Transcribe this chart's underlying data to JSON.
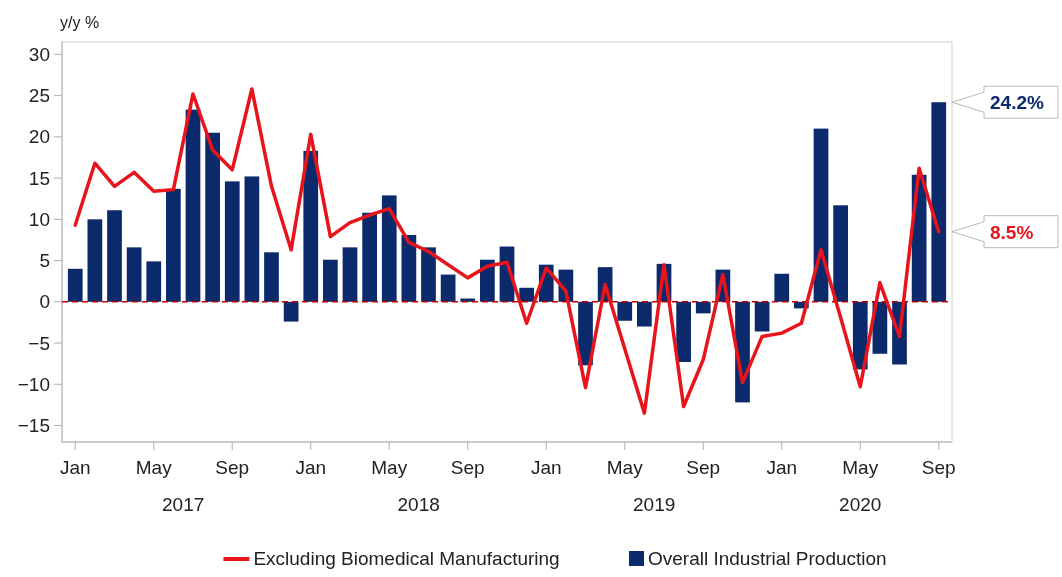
{
  "chart_data": {
    "type": "bar",
    "ylabel": "y/y %",
    "categories": [
      "Jan",
      null,
      null,
      null,
      "May",
      null,
      null,
      null,
      "Sep",
      null,
      null,
      null,
      "Jan",
      null,
      null,
      null,
      "May",
      null,
      null,
      null,
      "Sep",
      null,
      null,
      null,
      "Jan",
      null,
      null,
      null,
      "May",
      null,
      null,
      null,
      "Sep",
      null,
      null,
      null,
      "Jan",
      null,
      null,
      null,
      "May",
      null,
      null,
      null,
      "Sep"
    ],
    "series": [
      {
        "name": "Excluding Biomedical Manufacturing",
        "type": "line",
        "color": "#e8141b",
        "values": [
          9.3,
          16.8,
          14,
          15.7,
          13.4,
          13.6,
          25.2,
          18.4,
          16,
          25.8,
          14,
          6.3,
          20.3,
          7.9,
          9.6,
          10.5,
          11.3,
          7.2,
          6.1,
          4.5,
          2.9,
          4.3,
          4.8,
          -2.6,
          4.1,
          1.3,
          -10.4,
          2.1,
          -5.7,
          -13.5,
          4.5,
          -12.7,
          -7,
          3.3,
          -9.8,
          -4.2,
          -3.8,
          -2.6,
          6.3,
          -1.9,
          -10.3,
          2.3,
          -4.2,
          16.2,
          8.5
        ]
      },
      {
        "name": "Overall Industrial Production",
        "color": "#0b2a6b",
        "values": [
          4,
          10,
          11.1,
          6.6,
          4.9,
          13.7,
          23.3,
          20.5,
          14.6,
          15.2,
          6,
          -2.4,
          18.3,
          5.1,
          6.6,
          10.8,
          12.9,
          8.1,
          6.6,
          3.3,
          0.4,
          5.1,
          6.7,
          1.7,
          4.5,
          3.9,
          -7.7,
          4.2,
          -2.3,
          -3,
          4.6,
          -7.3,
          -1.4,
          3.9,
          -12.2,
          -3.6,
          3.4,
          -0.8,
          21,
          11.7,
          -8.2,
          -6.3,
          -7.6,
          15.4,
          24.2
        ]
      }
    ],
    "ylim": [
      -17,
      31.5
    ],
    "yticks": [
      -15,
      -10,
      -5,
      0,
      5,
      10,
      15,
      20,
      25,
      30
    ],
    "ref_lines": [
      {
        "axis": "y",
        "value": 0,
        "color": "#c00000",
        "line_style": "dashed"
      }
    ],
    "annotations": [
      "2017",
      "2018",
      "2019",
      "2020",
      "24.2%",
      "8.5%"
    ],
    "legend": "bottom",
    "grid": false
  }
}
